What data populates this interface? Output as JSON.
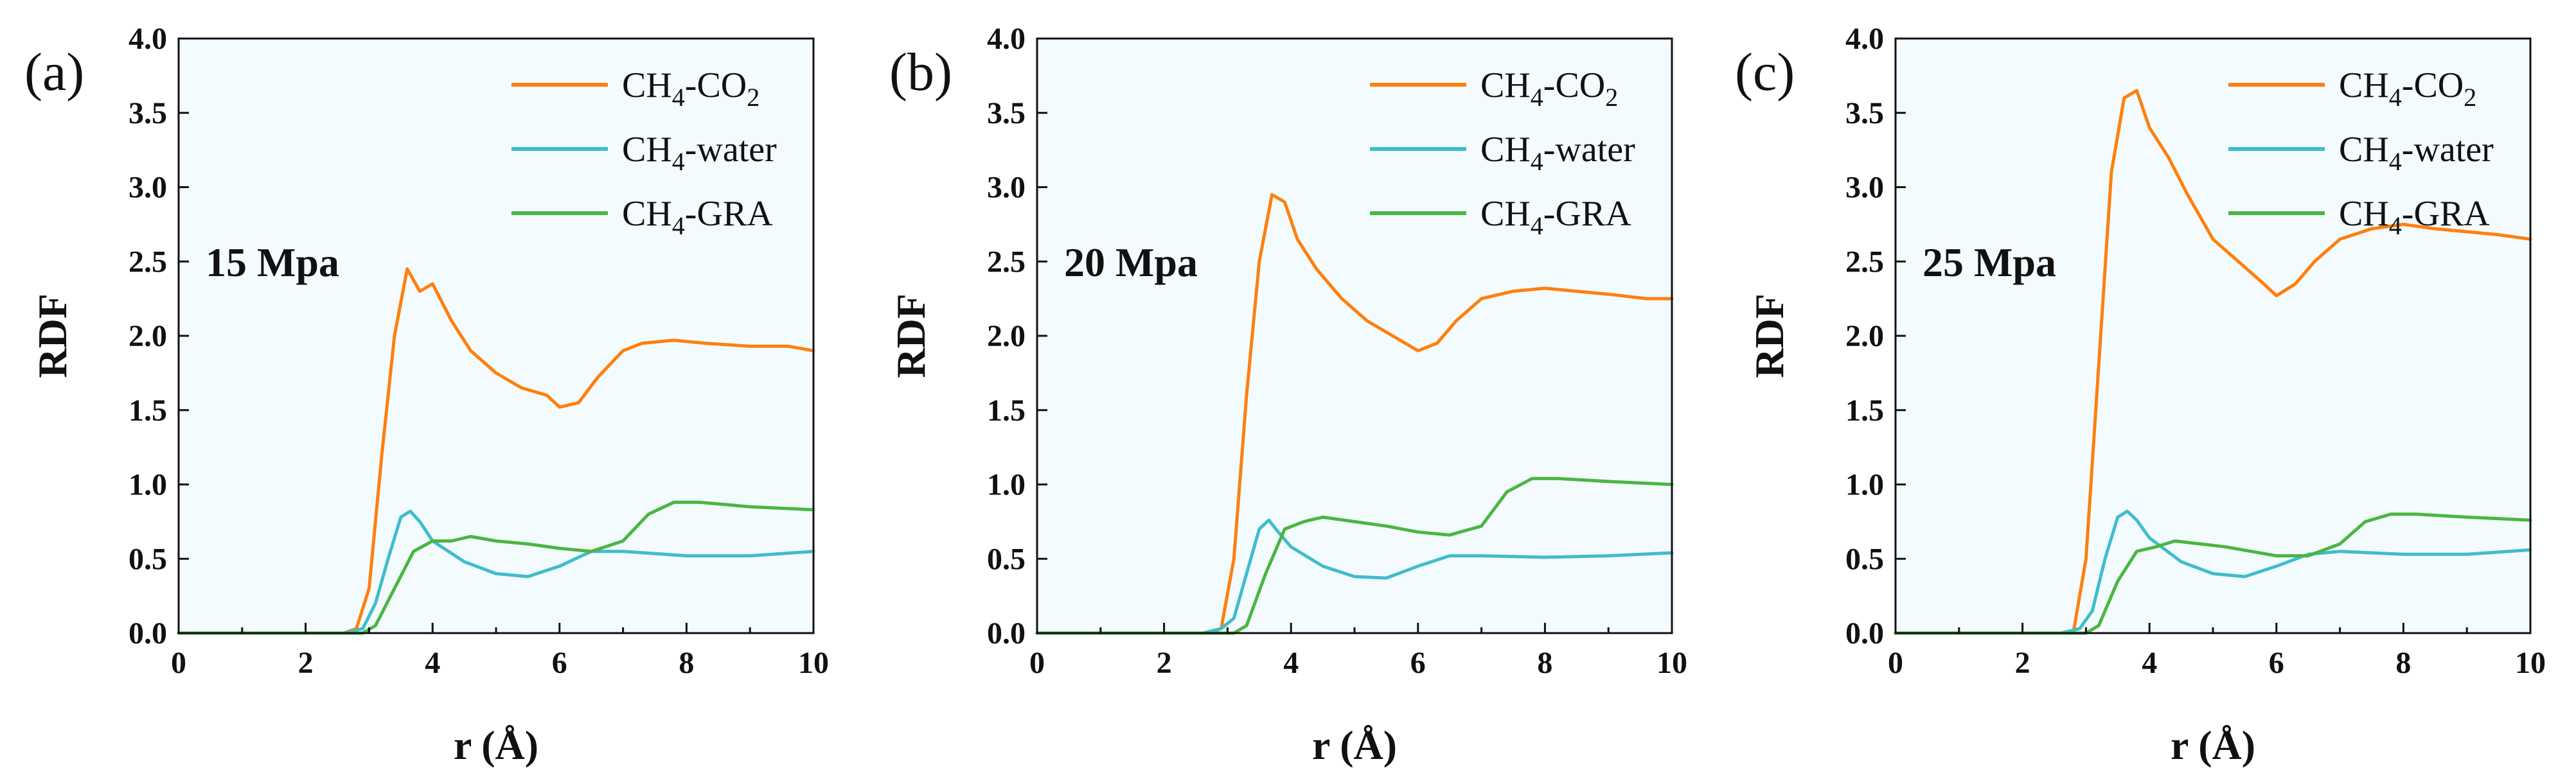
{
  "chart_data": [
    {
      "type": "line",
      "panel_label": "(a)",
      "annotation": "15 Mpa",
      "xlabel": "r (Å)",
      "ylabel": "RDF",
      "xlim": [
        0,
        10
      ],
      "ylim": [
        0,
        4
      ],
      "xticks": [
        "0",
        "2",
        "4",
        "6",
        "8",
        "10"
      ],
      "yticks": [
        "0.0",
        "0.5",
        "1.0",
        "1.5",
        "2.0",
        "2.5",
        "3.0",
        "3.5",
        "4.0"
      ],
      "legend": "top-right",
      "series": [
        {
          "name": "CH4-CO2",
          "base": "CH",
          "sub1": "4",
          "mid": "-CO",
          "sub2": "2",
          "color": "#ff7f0e",
          "x": [
            0,
            2.6,
            2.8,
            3.0,
            3.2,
            3.4,
            3.6,
            3.8,
            4.0,
            4.3,
            4.6,
            5.0,
            5.4,
            5.8,
            6.0,
            6.3,
            6.6,
            7.0,
            7.3,
            7.8,
            8.3,
            9.0,
            9.6,
            10
          ],
          "y": [
            0,
            0,
            0.03,
            0.3,
            1.2,
            2.0,
            2.45,
            2.3,
            2.35,
            2.1,
            1.9,
            1.75,
            1.65,
            1.6,
            1.52,
            1.55,
            1.72,
            1.9,
            1.95,
            1.97,
            1.95,
            1.93,
            1.93,
            1.9
          ]
        },
        {
          "name": "CH4-water",
          "base": "CH",
          "sub1": "4",
          "mid": "-water",
          "sub2": "",
          "color": "#41bccb",
          "x": [
            0,
            2.6,
            2.9,
            3.1,
            3.3,
            3.5,
            3.65,
            3.8,
            4.0,
            4.5,
            5.0,
            5.5,
            6.0,
            6.5,
            7.0,
            8.0,
            9.0,
            10
          ],
          "y": [
            0,
            0,
            0.03,
            0.2,
            0.5,
            0.78,
            0.82,
            0.75,
            0.62,
            0.48,
            0.4,
            0.38,
            0.45,
            0.55,
            0.55,
            0.52,
            0.52,
            0.55
          ]
        },
        {
          "name": "CH4-GRA",
          "base": "CH",
          "sub1": "4",
          "mid": "-GRA",
          "sub2": "",
          "color": "#4bb543",
          "x": [
            0,
            2.9,
            3.1,
            3.4,
            3.7,
            4.0,
            4.3,
            4.6,
            5.0,
            5.5,
            6.0,
            6.5,
            7.0,
            7.4,
            7.8,
            8.2,
            9.0,
            10
          ],
          "y": [
            0,
            0,
            0.05,
            0.3,
            0.55,
            0.62,
            0.62,
            0.65,
            0.62,
            0.6,
            0.57,
            0.55,
            0.62,
            0.8,
            0.88,
            0.88,
            0.85,
            0.83
          ]
        }
      ]
    },
    {
      "type": "line",
      "panel_label": "(b)",
      "annotation": "20 Mpa",
      "xlabel": "r (Å)",
      "ylabel": "RDF",
      "xlim": [
        0,
        10
      ],
      "ylim": [
        0,
        4
      ],
      "xticks": [
        "0",
        "2",
        "4",
        "6",
        "8",
        "10"
      ],
      "yticks": [
        "0.0",
        "0.5",
        "1.0",
        "1.5",
        "2.0",
        "2.5",
        "3.0",
        "3.5",
        "4.0"
      ],
      "legend": "top-right",
      "series": [
        {
          "name": "CH4-CO2",
          "base": "CH",
          "sub1": "4",
          "mid": "-CO",
          "sub2": "2",
          "color": "#ff7f0e",
          "x": [
            0,
            2.7,
            2.9,
            3.1,
            3.3,
            3.5,
            3.7,
            3.9,
            4.1,
            4.4,
            4.8,
            5.2,
            5.6,
            6.0,
            6.3,
            6.6,
            7.0,
            7.5,
            8.0,
            8.5,
            9.0,
            9.6,
            10
          ],
          "y": [
            0,
            0,
            0.03,
            0.5,
            1.6,
            2.5,
            2.95,
            2.9,
            2.65,
            2.45,
            2.25,
            2.1,
            2.0,
            1.9,
            1.95,
            2.1,
            2.25,
            2.3,
            2.32,
            2.3,
            2.28,
            2.25,
            2.25
          ]
        },
        {
          "name": "CH4-water",
          "base": "CH",
          "sub1": "4",
          "mid": "-water",
          "sub2": "",
          "color": "#41bccb",
          "x": [
            0,
            2.6,
            2.9,
            3.1,
            3.3,
            3.5,
            3.65,
            3.8,
            4.0,
            4.5,
            5.0,
            5.5,
            6.0,
            6.5,
            7.0,
            8.0,
            9.0,
            10
          ],
          "y": [
            0,
            0,
            0.03,
            0.1,
            0.4,
            0.7,
            0.76,
            0.68,
            0.58,
            0.45,
            0.38,
            0.37,
            0.45,
            0.52,
            0.52,
            0.51,
            0.52,
            0.54
          ]
        },
        {
          "name": "CH4-GRA",
          "base": "CH",
          "sub1": "4",
          "mid": "-GRA",
          "sub2": "",
          "color": "#4bb543",
          "x": [
            0,
            3.1,
            3.3,
            3.6,
            3.9,
            4.2,
            4.5,
            5.0,
            5.5,
            6.0,
            6.5,
            7.0,
            7.4,
            7.8,
            8.2,
            9.0,
            10
          ],
          "y": [
            0,
            0,
            0.05,
            0.4,
            0.7,
            0.75,
            0.78,
            0.75,
            0.72,
            0.68,
            0.66,
            0.72,
            0.95,
            1.04,
            1.04,
            1.02,
            1.0
          ]
        }
      ]
    },
    {
      "type": "line",
      "panel_label": "(c)",
      "annotation": "25 Mpa",
      "xlabel": "r (Å)",
      "ylabel": "RDF",
      "xlim": [
        0,
        10
      ],
      "ylim": [
        0,
        4
      ],
      "xticks": [
        "0",
        "2",
        "4",
        "6",
        "8",
        "10"
      ],
      "yticks": [
        "0.0",
        "0.5",
        "1.0",
        "1.5",
        "2.0",
        "2.5",
        "3.0",
        "3.5",
        "4.0"
      ],
      "legend": "top-right",
      "series": [
        {
          "name": "CH4-CO2",
          "base": "CH",
          "sub1": "4",
          "mid": "-CO",
          "sub2": "2",
          "color": "#ff7f0e",
          "x": [
            0,
            2.8,
            3.0,
            3.2,
            3.4,
            3.6,
            3.8,
            4.0,
            4.3,
            4.6,
            5.0,
            5.4,
            5.8,
            6.0,
            6.3,
            6.6,
            7.0,
            7.5,
            8.0,
            8.5,
            9.0,
            9.5,
            10
          ],
          "y": [
            0,
            0,
            0.5,
            1.8,
            3.1,
            3.6,
            3.65,
            3.4,
            3.2,
            2.95,
            2.65,
            2.5,
            2.35,
            2.27,
            2.35,
            2.5,
            2.65,
            2.72,
            2.75,
            2.72,
            2.7,
            2.68,
            2.65
          ]
        },
        {
          "name": "CH4-water",
          "base": "CH",
          "sub1": "4",
          "mid": "-water",
          "sub2": "",
          "color": "#41bccb",
          "x": [
            0,
            2.6,
            2.9,
            3.1,
            3.3,
            3.5,
            3.65,
            3.8,
            4.0,
            4.5,
            5.0,
            5.5,
            6.0,
            6.5,
            7.0,
            8.0,
            9.0,
            10
          ],
          "y": [
            0,
            0,
            0.03,
            0.15,
            0.5,
            0.78,
            0.82,
            0.76,
            0.64,
            0.48,
            0.4,
            0.38,
            0.45,
            0.53,
            0.55,
            0.53,
            0.53,
            0.56
          ]
        },
        {
          "name": "CH4-GRA",
          "base": "CH",
          "sub1": "4",
          "mid": "-GRA",
          "sub2": "",
          "color": "#4bb543",
          "x": [
            0,
            3.0,
            3.2,
            3.5,
            3.8,
            4.1,
            4.4,
            4.8,
            5.2,
            5.6,
            6.0,
            6.5,
            7.0,
            7.4,
            7.8,
            8.2,
            9.0,
            10
          ],
          "y": [
            0,
            0,
            0.05,
            0.35,
            0.55,
            0.58,
            0.62,
            0.6,
            0.58,
            0.55,
            0.52,
            0.52,
            0.6,
            0.75,
            0.8,
            0.8,
            0.78,
            0.76
          ]
        }
      ]
    }
  ]
}
